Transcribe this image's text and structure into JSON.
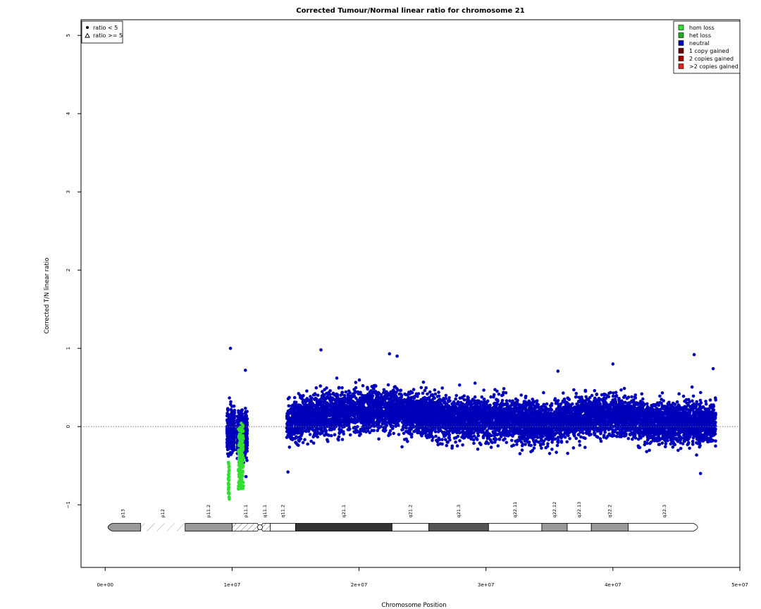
{
  "chart_data": {
    "type": "scatter",
    "title": "Corrected Tumour/Normal linear ratio for chromosome  21",
    "xlabel": "Chromosome Position",
    "ylabel": "Corrected T/N linear ratio",
    "xlim": [
      -1900000,
      50000000
    ],
    "ylim": [
      -1.8,
      5.2
    ],
    "x_ticks": [
      0,
      10000000,
      20000000,
      30000000,
      40000000,
      50000000
    ],
    "x_tick_labels": [
      "0e+00",
      "1e+07",
      "2e+07",
      "3e+07",
      "4e+07",
      "5e+07"
    ],
    "y_ticks": [
      -1,
      0,
      1,
      2,
      3,
      4,
      5
    ],
    "y_tick_labels": [
      "−1",
      "0",
      "1",
      "2",
      "3",
      "4",
      "5"
    ],
    "reference_line": {
      "y": 0,
      "style": "dotted"
    },
    "shape_legend": {
      "position": "top-left",
      "entries": [
        {
          "symbol": "dot",
          "label": "ratio < 5"
        },
        {
          "symbol": "triangle",
          "label": "ratio >= 5"
        }
      ]
    },
    "color_legend": {
      "position": "top-right",
      "entries": [
        {
          "label": "hom loss",
          "color": "#33dd33"
        },
        {
          "label": "het loss",
          "color": "#22aa22"
        },
        {
          "label": "neutral",
          "color": "#0000bb"
        },
        {
          "label": "1 copy gained",
          "color": "#660000"
        },
        {
          "label": "2 copies gained",
          "color": "#990000"
        },
        {
          "label": ">2 copies gained",
          "color": "#dd2222"
        }
      ]
    },
    "series": [
      {
        "name": "neutral",
        "color": "#0000bb",
        "regions": [
          {
            "x": [
              9600000,
              10200000
            ],
            "y_center": -0.05,
            "y_spread": 0.3
          },
          {
            "x": [
              10400000,
              11200000
            ],
            "y_center": -0.1,
            "y_spread": 0.32
          },
          {
            "x": [
              14300000,
              48100000
            ],
            "y_center": 0.05,
            "y_spread": 0.3
          }
        ],
        "trend": [
          {
            "x": 14300000,
            "y": 0.0
          },
          {
            "x": 16000000,
            "y": 0.08
          },
          {
            "x": 20000000,
            "y": 0.15
          },
          {
            "x": 23000000,
            "y": 0.15
          },
          {
            "x": 27000000,
            "y": 0.05
          },
          {
            "x": 31000000,
            "y": 0.05
          },
          {
            "x": 35000000,
            "y": -0.02
          },
          {
            "x": 37000000,
            "y": 0.05
          },
          {
            "x": 40000000,
            "y": 0.1
          },
          {
            "x": 43000000,
            "y": 0.0
          },
          {
            "x": 48100000,
            "y": 0.0
          }
        ],
        "outliers": [
          {
            "x": 9870000,
            "y": 1.0
          },
          {
            "x": 17000000,
            "y": 0.98
          },
          {
            "x": 22400000,
            "y": 0.93
          },
          {
            "x": 23000000,
            "y": 0.9
          },
          {
            "x": 40000000,
            "y": 0.8
          },
          {
            "x": 46400000,
            "y": 0.92
          },
          {
            "x": 47900000,
            "y": 0.74
          },
          {
            "x": 11050000,
            "y": 0.72
          },
          {
            "x": 14400000,
            "y": -0.58
          },
          {
            "x": 46900000,
            "y": -0.6
          },
          {
            "x": 11100000,
            "y": -0.64
          }
        ]
      },
      {
        "name": "hom loss",
        "color": "#33dd33",
        "regions": [
          {
            "x": [
              9700000,
              9780000
            ],
            "y_range": [
              -0.93,
              -0.45
            ]
          },
          {
            "x": [
              10500000,
              10900000
            ],
            "y_range": [
              -0.8,
              0.05
            ]
          }
        ]
      }
    ],
    "ideogram": {
      "bands": [
        {
          "name": "p13",
          "start": 0,
          "end": 2800000,
          "stain": "gvar"
        },
        {
          "name": "p12",
          "start": 2800000,
          "end": 6300000,
          "stain": "stalk"
        },
        {
          "name": "p11.2",
          "start": 6300000,
          "end": 10000000,
          "stain": "gpos50"
        },
        {
          "name": "p11.1",
          "start": 10000000,
          "end": 12200000,
          "stain": "acen"
        },
        {
          "name": "q11.1",
          "start": 12200000,
          "end": 13000000,
          "stain": "acen"
        },
        {
          "name": "q11.2",
          "start": 13000000,
          "end": 15000000,
          "stain": "gneg"
        },
        {
          "name": "q21.1",
          "start": 15000000,
          "end": 22600000,
          "stain": "gpos100"
        },
        {
          "name": "q21.2",
          "start": 22600000,
          "end": 25500000,
          "stain": "gneg"
        },
        {
          "name": "q21.3",
          "start": 25500000,
          "end": 30200000,
          "stain": "gpos75"
        },
        {
          "name": "q22.11",
          "start": 30200000,
          "end": 34400000,
          "stain": "gneg"
        },
        {
          "name": "q22.12",
          "start": 34400000,
          "end": 36400000,
          "stain": "gpos50"
        },
        {
          "name": "q22.13",
          "start": 36400000,
          "end": 38300000,
          "stain": "gneg"
        },
        {
          "name": "q22.2",
          "start": 38300000,
          "end": 41200000,
          "stain": "gpos50"
        },
        {
          "name": "q22.3",
          "start": 41200000,
          "end": 46900000,
          "stain": "gneg"
        }
      ]
    }
  }
}
